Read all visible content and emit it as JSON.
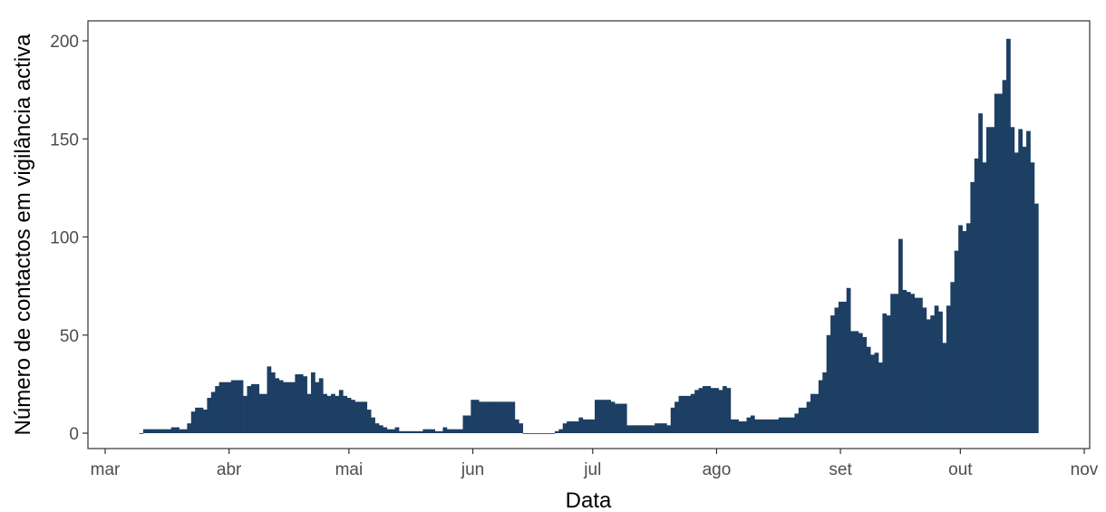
{
  "chart_data": {
    "type": "bar",
    "title": "",
    "xlabel": "Data",
    "ylabel": "Número de contactos em vigilância activa",
    "bar_color": "#1c3f63",
    "grid": false,
    "start_date": "2020-03-10",
    "ylim": [
      0,
      210
    ],
    "y_ticks": [
      0,
      50,
      100,
      150,
      200
    ],
    "x_ticks": [
      {
        "label": "mar",
        "date": "2020-03-01"
      },
      {
        "label": "abr",
        "date": "2020-04-01"
      },
      {
        "label": "mai",
        "date": "2020-05-01"
      },
      {
        "label": "jun",
        "date": "2020-06-01"
      },
      {
        "label": "jul",
        "date": "2020-07-01"
      },
      {
        "label": "ago",
        "date": "2020-08-01"
      },
      {
        "label": "set",
        "date": "2020-09-01"
      },
      {
        "label": "out",
        "date": "2020-10-01"
      },
      {
        "label": "nov",
        "date": "2020-11-01"
      }
    ],
    "values": [
      0,
      2,
      2,
      2,
      2,
      2,
      2,
      2,
      3,
      3,
      2,
      2,
      5,
      11,
      13,
      13,
      12,
      18,
      21,
      24,
      26,
      26,
      26,
      27,
      27,
      27,
      19,
      24,
      25,
      25,
      20,
      20,
      34,
      31,
      28,
      27,
      26,
      26,
      26,
      30,
      30,
      29,
      20,
      31,
      26,
      28,
      20,
      19,
      20,
      19,
      22,
      19,
      18,
      17,
      16,
      16,
      16,
      12,
      8,
      5,
      4,
      3,
      2,
      2,
      3,
      1,
      1,
      1,
      1,
      1,
      1,
      2,
      2,
      2,
      1,
      1,
      3,
      2,
      2,
      2,
      2,
      9,
      9,
      17,
      17,
      16,
      16,
      16,
      16,
      16,
      16,
      16,
      16,
      16,
      7,
      5,
      0,
      0,
      0,
      0,
      0,
      0,
      0,
      0,
      1,
      2,
      5,
      6,
      6,
      6,
      8,
      7,
      7,
      7,
      17,
      17,
      17,
      17,
      16,
      15,
      15,
      15,
      4,
      4,
      4,
      4,
      4,
      4,
      4,
      5,
      5,
      5,
      4,
      13,
      16,
      19,
      19,
      19,
      20,
      22,
      23,
      24,
      24,
      23,
      23,
      22,
      24,
      23,
      7,
      7,
      6,
      6,
      8,
      9,
      7,
      7,
      7,
      7,
      7,
      7,
      8,
      8,
      8,
      8,
      10,
      13,
      13,
      16,
      20,
      20,
      27,
      31,
      50,
      60,
      64,
      67,
      67,
      74,
      52,
      52,
      51,
      49,
      44,
      40,
      41,
      36,
      61,
      60,
      71,
      71,
      99,
      73,
      72,
      71,
      69,
      69,
      64,
      58,
      60,
      65,
      62,
      46,
      65,
      77,
      93,
      106,
      103,
      107,
      128,
      140,
      163,
      138,
      156,
      156,
      173,
      173,
      180,
      201,
      156,
      143,
      155,
      146,
      154,
      138,
      117
    ]
  }
}
